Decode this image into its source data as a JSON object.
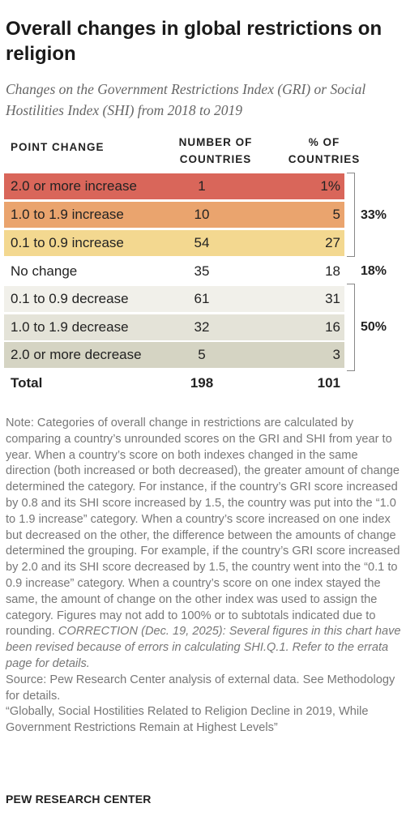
{
  "title": "Overall changes in global restrictions on religion",
  "subtitle": "Changes on the Government Restrictions Index (GRI) or Social Hostilities Index (SHI) from 2018 to 2019",
  "table": {
    "headers": {
      "point_change": "POINT CHANGE",
      "num_line1": "NUMBER OF",
      "num_line2": "COUNTRIES",
      "pct_line1": "% OF",
      "pct_line2": "COUNTRIES"
    },
    "rows": [
      {
        "label": "2.0 or more increase",
        "count": "1",
        "pct": "1%",
        "color": "#d9665a"
      },
      {
        "label": "1.0 to 1.9 increase",
        "count": "10",
        "pct": "5",
        "color": "#eaa46e"
      },
      {
        "label": "0.1 to 0.9 increase",
        "count": "54",
        "pct": "27",
        "color": "#f3d890"
      },
      {
        "label": "No change",
        "count": "35",
        "pct": "18",
        "color": "#ffffff"
      },
      {
        "label": "0.1 to 0.9 decrease",
        "count": "61",
        "pct": "31",
        "color": "#f1f0ea"
      },
      {
        "label": "1.0 to 1.9 decrease",
        "count": "32",
        "pct": "16",
        "color": "#e4e3d8"
      },
      {
        "label": "2.0 or more decrease",
        "count": "5",
        "pct": "3",
        "color": "#d5d4c3"
      }
    ],
    "total": {
      "label": "Total",
      "count": "198",
      "pct": "101"
    },
    "subtotals": {
      "increase": "33%",
      "no_change": "18%",
      "decrease": "50%"
    }
  },
  "chart_data": {
    "type": "table",
    "title": "Overall changes in global restrictions on religion",
    "subtitle": "Changes on the Government Restrictions Index (GRI) or Social Hostilities Index (SHI) from 2018 to 2019",
    "columns": [
      "POINT CHANGE",
      "NUMBER OF COUNTRIES",
      "% OF COUNTRIES"
    ],
    "categories": [
      "2.0 or more increase",
      "1.0 to 1.9 increase",
      "0.1 to 0.9 increase",
      "No change",
      "0.1 to 0.9 decrease",
      "1.0 to 1.9 decrease",
      "2.0 or more decrease",
      "Total"
    ],
    "series": [
      {
        "name": "NUMBER OF COUNTRIES",
        "values": [
          1,
          10,
          54,
          35,
          61,
          32,
          5,
          198
        ]
      },
      {
        "name": "% OF COUNTRIES",
        "values": [
          1,
          5,
          27,
          18,
          31,
          16,
          3,
          101
        ]
      }
    ],
    "subtotals": [
      {
        "group": [
          "2.0 or more increase",
          "1.0 to 1.9 increase",
          "0.1 to 0.9 increase"
        ],
        "value": "33%"
      },
      {
        "group": [
          "No change"
        ],
        "value": "18%"
      },
      {
        "group": [
          "0.1 to 0.9 decrease",
          "1.0 to 1.9 decrease",
          "2.0 or more decrease"
        ],
        "value": "50%"
      }
    ]
  },
  "notes": {
    "main": "Note: Categories of overall change in restrictions are calculated by comparing a country’s unrounded scores on the GRI and SHI from year to year. When a country’s score on both indexes changed in the same direction (both increased or both decreased), the greater amount of change determined the category. For instance, if the country’s GRI score increased by 0.8 and its SHI score increased by 1.5, the country was put into the “1.0 to 1.9 increase” category. When a country’s score increased on one index but decreased on the other, the difference between the amounts of change determined the grouping. For example, if the country’s GRI score increased by 2.0 and its SHI score decreased by 1.5, the country went into the “0.1 to 0.9 increase” category. When a country’s score on one index stayed the same, the amount of change on the other index was used to assign the category. Figures may not add to 100% or to subtotals indicated due to rounding.",
    "correction": "CORRECTION (Dec. 19, 2025): Several figures in this chart have been revised because of errors in calculating SHI.Q.1. Refer to the errata page for details.",
    "source": "Source: Pew Research Center analysis of external data. See Methodology for details.",
    "report": "“Globally, Social Hostilities Related to Religion Decline in 2019, While Government Restrictions Remain at Highest Levels”"
  },
  "footer": "PEW RESEARCH CENTER"
}
